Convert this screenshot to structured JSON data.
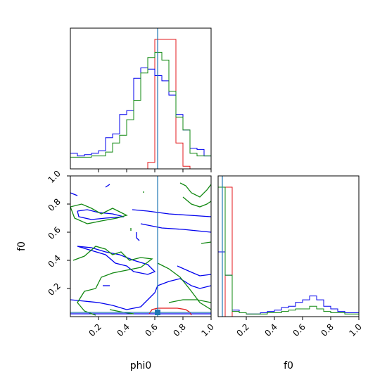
{
  "chart_data": {
    "type": "corner",
    "parameters": [
      "phi0",
      "f0"
    ],
    "colors": {
      "red": "#e31a1c",
      "blue": "#0000ee",
      "green": "#118811",
      "truth": "#1f77b4"
    },
    "truth": {
      "phi0": 0.62,
      "f0": 0.03
    },
    "hist_phi0": {
      "bin_edges": [
        0.0,
        0.05,
        0.1,
        0.15,
        0.2,
        0.25,
        0.3,
        0.35,
        0.4,
        0.45,
        0.5,
        0.55,
        0.6,
        0.65,
        0.7,
        0.75,
        0.8,
        0.85,
        0.9,
        0.95,
        1.0
      ],
      "series": [
        {
          "color": "red",
          "counts": [
            0,
            0,
            0,
            0,
            0,
            0,
            0,
            0,
            0,
            0,
            0,
            0.05,
            1.0,
            1.0,
            1.0,
            0.2,
            0.02,
            0,
            0,
            0
          ]
        },
        {
          "color": "blue",
          "counts": [
            0.12,
            0.1,
            0.11,
            0.12,
            0.14,
            0.24,
            0.27,
            0.42,
            0.45,
            0.7,
            0.78,
            0.77,
            0.72,
            0.68,
            0.57,
            0.42,
            0.3,
            0.16,
            0.15,
            0.1
          ]
        },
        {
          "color": "green",
          "counts": [
            0.09,
            0.09,
            0.09,
            0.1,
            0.1,
            0.13,
            0.2,
            0.26,
            0.38,
            0.53,
            0.74,
            0.86,
            0.9,
            0.84,
            0.6,
            0.4,
            0.3,
            0.12,
            0.1,
            0.1
          ]
        }
      ]
    },
    "hist_f0": {
      "bin_edges": [
        0.0,
        0.05,
        0.1,
        0.15,
        0.2,
        0.25,
        0.3,
        0.35,
        0.4,
        0.45,
        0.5,
        0.55,
        0.6,
        0.65,
        0.7,
        0.75,
        0.8,
        0.85,
        0.9,
        0.95,
        1.0
      ],
      "series": [
        {
          "color": "red",
          "counts": [
            0.0,
            1.0,
            0,
            0,
            0,
            0,
            0,
            0,
            0,
            0,
            0,
            0,
            0,
            0,
            0,
            0,
            0,
            0,
            0,
            0
          ]
        },
        {
          "color": "blue",
          "counts": [
            0.5,
            0.32,
            0.05,
            0.03,
            0.02,
            0.02,
            0.03,
            0.04,
            0.05,
            0.07,
            0.08,
            0.11,
            0.13,
            0.16,
            0.13,
            0.08,
            0.06,
            0.04,
            0.03,
            0.03
          ]
        },
        {
          "color": "green",
          "counts": [
            1.0,
            0.32,
            0.04,
            0.03,
            0.02,
            0.02,
            0.02,
            0.03,
            0.03,
            0.04,
            0.05,
            0.06,
            0.06,
            0.08,
            0.06,
            0.04,
            0.03,
            0.03,
            0.02,
            0.02
          ]
        }
      ]
    },
    "joint_contours": [
      {
        "color": "blue",
        "paths": [
          [
            [
              0.05,
              0.75
            ],
            [
              0.12,
              0.76
            ],
            [
              0.2,
              0.74
            ],
            [
              0.3,
              0.73
            ],
            [
              0.38,
              0.71
            ],
            [
              0.25,
              0.7
            ],
            [
              0.15,
              0.69
            ],
            [
              0.06,
              0.71
            ],
            [
              0.05,
              0.75
            ]
          ],
          [
            [
              0.44,
              0.76
            ],
            [
              0.55,
              0.75
            ],
            [
              0.7,
              0.73
            ],
            [
              0.85,
              0.72
            ],
            [
              1.0,
              0.71
            ]
          ],
          [
            [
              0.5,
              0.66
            ],
            [
              0.65,
              0.63
            ],
            [
              0.8,
              0.62
            ],
            [
              0.9,
              0.61
            ],
            [
              1.0,
              0.6
            ]
          ],
          [
            [
              0.05,
              0.5
            ],
            [
              0.15,
              0.47
            ],
            [
              0.25,
              0.44
            ],
            [
              0.32,
              0.38
            ],
            [
              0.4,
              0.36
            ],
            [
              0.45,
              0.32
            ],
            [
              0.55,
              0.3
            ],
            [
              0.6,
              0.32
            ],
            [
              0.55,
              0.37
            ],
            [
              0.45,
              0.4
            ],
            [
              0.35,
              0.44
            ],
            [
              0.25,
              0.46
            ],
            [
              0.15,
              0.49
            ],
            [
              0.05,
              0.5
            ]
          ],
          [
            [
              0.0,
              0.12
            ],
            [
              0.1,
              0.11
            ],
            [
              0.2,
              0.1
            ],
            [
              0.3,
              0.08
            ],
            [
              0.4,
              0.05
            ],
            [
              0.5,
              0.07
            ],
            [
              0.55,
              0.12
            ],
            [
              0.6,
              0.17
            ],
            [
              0.62,
              0.22
            ],
            [
              0.7,
              0.25
            ],
            [
              0.78,
              0.27
            ],
            [
              0.86,
              0.22
            ],
            [
              0.92,
              0.2
            ],
            [
              1.0,
              0.22
            ]
          ],
          [
            [
              0.76,
              0.36
            ],
            [
              0.85,
              0.32
            ],
            [
              0.92,
              0.29
            ],
            [
              1.0,
              0.3
            ]
          ],
          [
            [
              0.0,
              0.02
            ],
            [
              0.25,
              0.02
            ],
            [
              0.5,
              0.02
            ],
            [
              0.75,
              0.02
            ],
            [
              1.0,
              0.02
            ]
          ],
          [
            [
              0.25,
              0.92
            ],
            [
              0.28,
              0.94
            ]
          ],
          [
            [
              0.47,
              0.6
            ],
            [
              0.47,
              0.56
            ],
            [
              0.49,
              0.54
            ]
          ],
          [
            [
              0.23,
              0.22
            ],
            [
              0.28,
              0.22
            ]
          ],
          [
            [
              0.0,
              0.88
            ],
            [
              0.05,
              0.86
            ]
          ]
        ]
      },
      {
        "color": "green",
        "paths": [
          [
            [
              0.0,
              0.78
            ],
            [
              0.08,
              0.8
            ],
            [
              0.15,
              0.77
            ],
            [
              0.22,
              0.73
            ],
            [
              0.3,
              0.77
            ],
            [
              0.4,
              0.72
            ],
            [
              0.33,
              0.7
            ],
            [
              0.22,
              0.68
            ],
            [
              0.12,
              0.66
            ],
            [
              0.03,
              0.7
            ],
            [
              0.0,
              0.78
            ]
          ],
          [
            [
              0.02,
              0.4
            ],
            [
              0.1,
              0.43
            ],
            [
              0.18,
              0.5
            ],
            [
              0.25,
              0.48
            ],
            [
              0.3,
              0.44
            ],
            [
              0.36,
              0.46
            ],
            [
              0.42,
              0.4
            ],
            [
              0.5,
              0.42
            ],
            [
              0.58,
              0.41
            ],
            [
              0.5,
              0.35
            ],
            [
              0.4,
              0.33
            ],
            [
              0.3,
              0.31
            ],
            [
              0.22,
              0.28
            ],
            [
              0.18,
              0.2
            ],
            [
              0.1,
              0.18
            ],
            [
              0.05,
              0.1
            ],
            [
              0.1,
              0.04
            ],
            [
              0.18,
              0.01
            ]
          ],
          [
            [
              0.78,
              0.95
            ],
            [
              0.82,
              0.93
            ],
            [
              0.86,
              0.88
            ],
            [
              0.92,
              0.85
            ],
            [
              0.97,
              0.9
            ],
            [
              1.0,
              0.94
            ]
          ],
          [
            [
              0.8,
              0.85
            ],
            [
              0.86,
              0.8
            ],
            [
              0.92,
              0.78
            ],
            [
              0.97,
              0.8
            ],
            [
              1.0,
              0.82
            ]
          ],
          [
            [
              0.62,
              0.38
            ],
            [
              0.66,
              0.36
            ],
            [
              0.7,
              0.34
            ],
            [
              0.78,
              0.28
            ],
            [
              0.86,
              0.18
            ],
            [
              0.92,
              0.1
            ],
            [
              1.0,
              0.05
            ]
          ],
          [
            [
              0.7,
              0.1
            ],
            [
              0.8,
              0.12
            ],
            [
              0.9,
              0.12
            ],
            [
              1.0,
              0.1
            ]
          ],
          [
            [
              0.28,
              0.05
            ],
            [
              0.38,
              0.03
            ],
            [
              0.45,
              0.02
            ]
          ],
          [
            [
              0.93,
              0.52
            ],
            [
              1.0,
              0.53
            ]
          ],
          [
            [
              0.43,
              0.61
            ],
            [
              0.43,
              0.63
            ]
          ],
          [
            [
              0.52,
              0.88
            ],
            [
              0.52,
              0.89
            ]
          ]
        ]
      },
      {
        "color": "red",
        "paths": [
          [
            [
              0.56,
              0.02
            ],
            [
              0.58,
              0.05
            ],
            [
              0.62,
              0.06
            ],
            [
              0.68,
              0.06
            ],
            [
              0.76,
              0.06
            ],
            [
              0.82,
              0.05
            ],
            [
              0.85,
              0.03
            ],
            [
              0.86,
              0.01
            ]
          ]
        ]
      }
    ],
    "ticks": [
      "0.2",
      "0.4",
      "0.6",
      "0.8",
      "1.0"
    ],
    "xlabel_left": "phi0",
    "xlabel_right": "f0",
    "ylabel_joint": "f0"
  }
}
